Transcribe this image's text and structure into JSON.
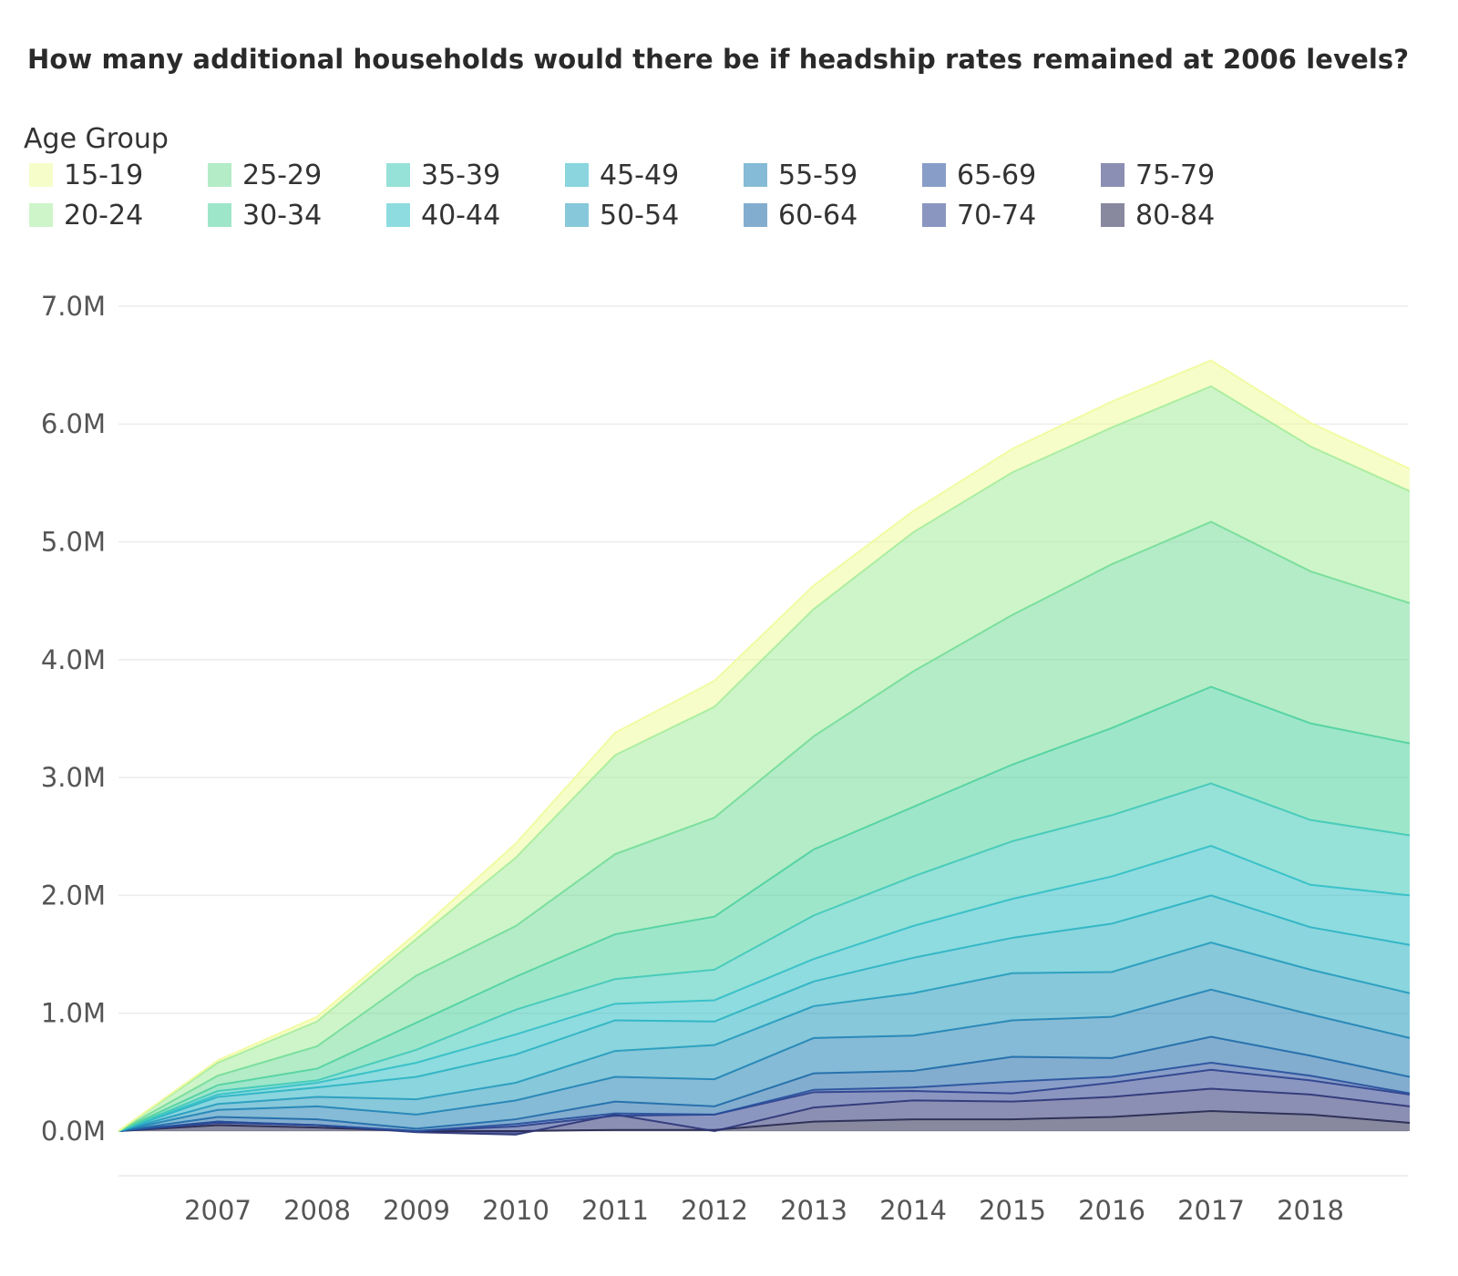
{
  "title": "How many additional households would there be if headship rates remained at 2006 levels?",
  "legend_title": "Age Group",
  "chart_data": {
    "type": "area",
    "stacked": true,
    "title": "How many additional households would there be if headship rates remained at 2006 levels?",
    "legend_title": "Age Group",
    "legend_placement": "top-left",
    "grid": true,
    "x": [
      2006,
      2007,
      2008,
      2009,
      2010,
      2011,
      2012,
      2013,
      2014,
      2015,
      2016,
      2017,
      2018,
      2019
    ],
    "x_tick_labels": [
      "2007",
      "2008",
      "2009",
      "2010",
      "2011",
      "2012",
      "2013",
      "2014",
      "2015",
      "2016",
      "2017",
      "2018"
    ],
    "y_tick_labels": [
      "0.0M",
      "1.0M",
      "2.0M",
      "3.0M",
      "4.0M",
      "5.0M",
      "6.0M",
      "7.0M"
    ],
    "ylim": [
      -0.4,
      7.3
    ],
    "units": "millions of households",
    "series": [
      {
        "name": "80-84",
        "color": "#262850",
        "values": [
          0,
          0.05,
          0.03,
          0,
          0,
          0.01,
          0.01,
          0.08,
          0.1,
          0.1,
          0.12,
          0.17,
          0.14,
          0.07
        ]
      },
      {
        "name": "75-79",
        "color": "#2b3375",
        "values": [
          0,
          0.03,
          0.02,
          -0.01,
          -0.03,
          0.13,
          -0.01,
          0.12,
          0.16,
          0.15,
          0.17,
          0.19,
          0.17,
          0.14
        ]
      },
      {
        "name": "70-74",
        "color": "#2b3f8c",
        "values": [
          0,
          -0.01,
          0,
          0.01,
          0.07,
          -0.01,
          0.14,
          0.13,
          0.08,
          0.07,
          0.12,
          0.16,
          0.12,
          0.1
        ]
      },
      {
        "name": "65-69",
        "color": "#264f9b",
        "values": [
          0,
          0.01,
          0,
          0,
          0.02,
          0.02,
          0,
          0.02,
          0.03,
          0.1,
          0.05,
          0.06,
          0.04,
          0.01
        ]
      },
      {
        "name": "60-64",
        "color": "#1e6aa8",
        "values": [
          0,
          0.04,
          0.05,
          0.02,
          0.04,
          0.1,
          0.07,
          0.14,
          0.14,
          0.21,
          0.16,
          0.22,
          0.17,
          0.14
        ]
      },
      {
        "name": "55-59",
        "color": "#2083b5",
        "values": [
          0,
          0.06,
          0.11,
          0.12,
          0.16,
          0.21,
          0.23,
          0.3,
          0.3,
          0.31,
          0.35,
          0.4,
          0.35,
          0.33
        ]
      },
      {
        "name": "50-54",
        "color": "#259bbc",
        "values": [
          0,
          0.05,
          0.08,
          0.13,
          0.15,
          0.22,
          0.29,
          0.27,
          0.36,
          0.4,
          0.38,
          0.4,
          0.38,
          0.38
        ]
      },
      {
        "name": "45-49",
        "color": "#2ab2c2",
        "values": [
          0,
          0.06,
          0.08,
          0.19,
          0.24,
          0.26,
          0.2,
          0.21,
          0.3,
          0.3,
          0.41,
          0.4,
          0.36,
          0.41
        ]
      },
      {
        "name": "40-44",
        "color": "#31bfc6",
        "values": [
          0,
          0.02,
          0.04,
          0.12,
          0.17,
          0.14,
          0.18,
          0.19,
          0.27,
          0.33,
          0.4,
          0.42,
          0.36,
          0.42
        ]
      },
      {
        "name": "35-39",
        "color": "#40c9b8",
        "values": [
          0,
          0.03,
          0.02,
          0.11,
          0.21,
          0.21,
          0.26,
          0.37,
          0.42,
          0.49,
          0.52,
          0.53,
          0.55,
          0.51
        ]
      },
      {
        "name": "30-34",
        "color": "#4fd29e",
        "values": [
          0,
          0.05,
          0.1,
          0.23,
          0.28,
          0.38,
          0.45,
          0.56,
          0.59,
          0.65,
          0.74,
          0.82,
          0.82,
          0.78
        ]
      },
      {
        "name": "25-29",
        "color": "#74dd99",
        "values": [
          0,
          0.08,
          0.19,
          0.4,
          0.43,
          0.68,
          0.84,
          0.96,
          1.15,
          1.27,
          1.39,
          1.4,
          1.29,
          1.19
        ]
      },
      {
        "name": "20-24",
        "color": "#a6ec9c",
        "values": [
          0,
          0.11,
          0.21,
          0.31,
          0.58,
          0.84,
          0.94,
          1.08,
          1.18,
          1.21,
          1.16,
          1.15,
          1.06,
          0.95
        ]
      },
      {
        "name": "15-19",
        "color": "#f1fb9c",
        "values": [
          0,
          0.02,
          0.04,
          0.05,
          0.12,
          0.19,
          0.22,
          0.2,
          0.18,
          0.2,
          0.22,
          0.22,
          0.2,
          0.19
        ]
      }
    ]
  },
  "legend_layout_order": [
    "15-19",
    "20-24",
    "25-29",
    "30-34",
    "35-39",
    "40-44",
    "45-49",
    "50-54",
    "55-59",
    "60-64",
    "65-69",
    "70-74",
    "75-79",
    "80-84"
  ]
}
